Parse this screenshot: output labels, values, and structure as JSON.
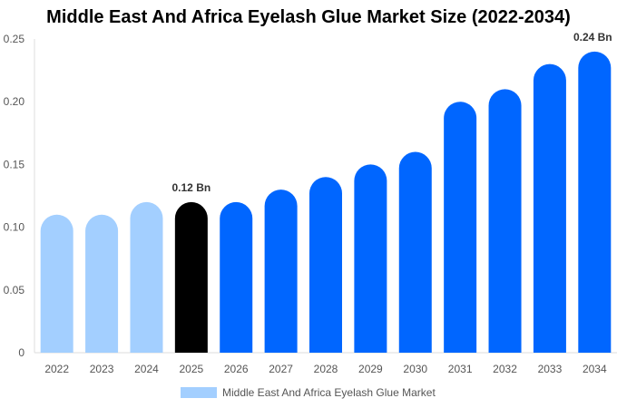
{
  "chart_data": {
    "type": "bar",
    "title": "Middle East And Africa Eyelash Glue Market Size (2022-2034)",
    "categories": [
      "2022",
      "2023",
      "2024",
      "2025",
      "2026",
      "2027",
      "2028",
      "2029",
      "2030",
      "2031",
      "2032",
      "2033",
      "2034"
    ],
    "series": [
      {
        "name": "Middle East And Africa Eyelash Glue Market",
        "values": [
          0.11,
          0.11,
          0.12,
          0.12,
          0.12,
          0.13,
          0.14,
          0.15,
          0.16,
          0.2,
          0.21,
          0.23,
          0.24
        ]
      }
    ],
    "ylim": [
      0,
      0.25
    ],
    "yticks": [
      "0",
      "0.05",
      "0.10",
      "0.15",
      "0.20",
      "0.25"
    ],
    "data_labels": [
      {
        "category": "2025",
        "text": "0.12 Bn"
      },
      {
        "category": "2034",
        "text": "0.24 Bn"
      }
    ],
    "colors": {
      "historical": "#a3cfff",
      "base_year": "#000000",
      "forecast": "#0066ff"
    },
    "grid": false,
    "legend": "bottom"
  }
}
